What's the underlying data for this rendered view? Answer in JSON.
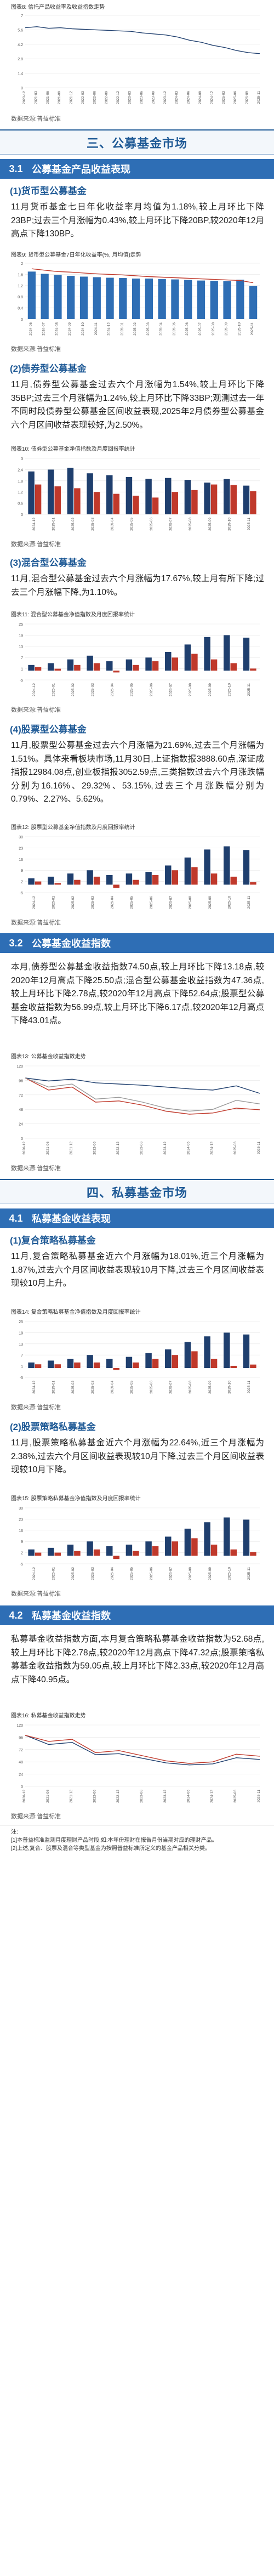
{
  "figures": {
    "f8": "图表8: 信托产品收益率及收益指数走势",
    "f9": "图表9: 货币型公募基金7日年化收益率(%, 月均值)走势",
    "f10": "图表10: 债券型公募基金净值指数及月度回报率统计",
    "f11": "图表11: 混合型公募基金净值指数及月度回报率统计",
    "f12": "图表12: 股票型公募基金净值指数及月度回报率统计",
    "f13": "图表13: 公募基金收益指数走势",
    "f14": "图表14: 复合策略私募基金净值指数及月度回报率统计",
    "f15": "图表15: 股票策略私募基金净值指数及月度回报率统计",
    "f16": "图表16: 私募基金收益指数走势"
  },
  "source_label": "数据来源:普益标准",
  "sections": {
    "s3": "三、公募基金市场",
    "s31_num": "3.1",
    "s31_title": "公募基金产品收益表现",
    "s311": "(1)货币型公募基金",
    "s312": "(2)债券型公募基金",
    "s313": "(3)混合型公募基金",
    "s314": "(4)股票型公募基金",
    "s32_num": "3.2",
    "s32_title": "公募基金收益指数",
    "s4": "四、私募基金市场",
    "s41_num": "4.1",
    "s41_title": "私募基金收益表现",
    "s411": "(1)复合策略私募基金",
    "s412": "(2)股票策略私募基金",
    "s42_num": "4.2",
    "s42_title": "私募基金收益指数"
  },
  "paragraphs": {
    "money": "11月货币基金七日年化收益率月均值为1.18%,较上月环比下降23BP;过去三个月涨幅为0.43%,较上月环比下降20BP,较2020年12月高点下降130BP。",
    "bond": "11月,债券型公募基金过去六个月涨幅为1.54%,较上月环比下降35BP;过去三个月涨幅为1.24%,较上月环比下降33BP;观测过去一年不同时段债券型公募基金区间收益表现,2025年2月债券型公募基金六个月区间收益表现较好,为2.50%。",
    "mixed": "11月,混合型公募基金过去六个月涨幅为17.67%,较上月有所下降;过去三个月涨幅下降,为1.10%。",
    "stock": "11月,股票型公募基金过去六个月涨幅为21.69%,过去三个月涨幅为1.51%。具体来看板块市场,11月30日,上证指数报3888.60点,深证成指报12984.08点,创业板指报3052.59点,三类指数过去六个月涨跌幅分别为16.16%、29.32%、53.15%,过去三个月涨跌幅分别为0.79%、2.27%、5.62%。",
    "index": "本月,债券型公募基金收益指数74.50点,较上月环比下降13.18点,较2020年12月高点下降25.50点;混合型公募基金收益指数为47.36点,较上月环比下降2.78点,较2020年12月高点下降52.64点;股票型公募基金收益指数为56.99点,较上月环比下降6.17点,较2020年12月高点下降43.01点。",
    "composite": "11月,复合策略私募基金近六个月涨幅为18.01%,近三个月涨幅为1.87%,过去六个月区间收益表现较10月下降,过去三个月区间收益表现较10月上升。",
    "privstock": "11月,股票策略私募基金近六个月涨幅为22.64%,近三个月涨幅为2.38%,过去六个月区间收益表现较10月下降,过去三个月区间收益表现较10月下降。",
    "privindex": "私募基金收益指数方面,本月复合策略私募基金收益指数为52.68点,较上月环比下降2.78点,较2020年12月高点下降47.32点;股票策略私募基金收益指数为59.05点,较上月环比下降2.33点,较2020年12月高点下降40.95点。"
  },
  "disclaimer": {
    "line1": "注:",
    "line2": "[1]本普益标准监测月度理财产品时段,如:本年份理财在报告月份当期对应的理财产品。",
    "line3": "[2]上述,复合、股票及混合等类型基金为按照普益标准所定义的基金产品相关分类。"
  },
  "colors": {
    "blue": "#2e6eb5",
    "red": "#c0392b",
    "orange": "#e68a2e",
    "navy": "#1f3f6e",
    "gray": "#9a9a9a"
  },
  "chart_data": [
    {
      "id": "f8",
      "type": "line",
      "categories": [
        "2020-12",
        "2021-03",
        "2021-06",
        "2021-09",
        "2021-12",
        "2022-03",
        "2022-06",
        "2022-09",
        "2022-12",
        "2023-03",
        "2023-06",
        "2023-09",
        "2023-12",
        "2024-03",
        "2024-06",
        "2024-09",
        "2024-12",
        "2025-03",
        "2025-06",
        "2025-09",
        "2025-11"
      ],
      "series": [
        {
          "name": "",
          "values": [
            5.8,
            5.9,
            5.75,
            5.8,
            5.7,
            5.65,
            5.6,
            5.55,
            5.5,
            5.45,
            5.3,
            5.2,
            5.1,
            4.9,
            4.6,
            4.4,
            4.1,
            3.9,
            3.6,
            3.4,
            3.3
          ],
          "color": "#1f3f6e"
        },
        {
          "name": "",
          "values": [
            100,
            101,
            101.5,
            101,
            101.5,
            102,
            101.5,
            101,
            100.5,
            101,
            100,
            99.5,
            99,
            98,
            96,
            95,
            94,
            92,
            90,
            88,
            87
          ],
          "color": "#8fb5dc"
        }
      ],
      "ylim": [
        0,
        7
      ]
    },
    {
      "id": "f9",
      "type": "bar_line",
      "categories": [
        "2024-06",
        "2024-07",
        "2024-08",
        "2024-09",
        "2024-10",
        "2024-11",
        "2024-12",
        "2025-01",
        "2025-02",
        "2025-03",
        "2025-04",
        "2025-05",
        "2025-06",
        "2025-07",
        "2025-08",
        "2025-09",
        "2025-10",
        "2025-11"
      ],
      "values": [
        1.7,
        1.62,
        1.58,
        1.55,
        1.52,
        1.5,
        1.48,
        1.47,
        1.45,
        1.45,
        1.43,
        1.42,
        1.4,
        1.38,
        1.37,
        1.36,
        1.41,
        1.18
      ],
      "line": [
        1.8,
        1.75,
        1.7,
        1.68,
        1.65,
        1.62,
        1.6,
        1.58,
        1.55,
        1.52,
        1.5,
        1.48,
        1.46,
        1.44,
        1.42,
        1.4,
        1.38,
        1.3
      ],
      "ylim": [
        0,
        2
      ]
    },
    {
      "id": "f10",
      "type": "bar",
      "categories": [
        "2024-12",
        "2025-01",
        "2025-02",
        "2025-03",
        "2025-04",
        "2025-05",
        "2025-06",
        "2025-07",
        "2025-08",
        "2025-09",
        "2025-10",
        "2025-11"
      ],
      "series": [
        {
          "name": "",
          "values": [
            2.3,
            2.4,
            2.5,
            2.2,
            2.1,
            2.0,
            1.9,
            1.95,
            1.85,
            1.7,
            1.89,
            1.54
          ],
          "color": "#1f3f6e"
        },
        {
          "name": "",
          "values": [
            1.6,
            1.5,
            1.4,
            1.2,
            1.1,
            1.0,
            0.9,
            1.2,
            1.3,
            1.6,
            1.57,
            1.24
          ],
          "color": "#c0392b"
        }
      ],
      "ylim": [
        0,
        3
      ]
    },
    {
      "id": "f11",
      "type": "bar",
      "categories": [
        "2024-12",
        "2025-01",
        "2025-02",
        "2025-03",
        "2025-04",
        "2025-05",
        "2025-06",
        "2025-07",
        "2025-08",
        "2025-09",
        "2025-10",
        "2025-11"
      ],
      "series": [
        {
          "name": "",
          "values": [
            3,
            4,
            6,
            8,
            5,
            6,
            7,
            10,
            14,
            18,
            19,
            17.67
          ],
          "color": "#1f3f6e"
        },
        {
          "name": "",
          "values": [
            2,
            1,
            3,
            4,
            -1,
            3,
            5,
            7,
            9,
            6,
            4,
            1.1
          ],
          "color": "#c0392b"
        }
      ],
      "ylim": [
        -5,
        25
      ]
    },
    {
      "id": "f12",
      "type": "bar",
      "categories": [
        "2024-12",
        "2025-01",
        "2025-02",
        "2025-03",
        "2025-04",
        "2025-05",
        "2025-06",
        "2025-07",
        "2025-08",
        "2025-09",
        "2025-10",
        "2025-11"
      ],
      "series": [
        {
          "name": "",
          "values": [
            4,
            5,
            7,
            9,
            6,
            7,
            8,
            12,
            17,
            22,
            24,
            21.69
          ],
          "color": "#1f3f6e"
        },
        {
          "name": "",
          "values": [
            2,
            1,
            3,
            5,
            -2,
            3,
            6,
            9,
            11,
            7,
            5,
            1.51
          ],
          "color": "#c0392b"
        }
      ],
      "ylim": [
        -5,
        30
      ]
    },
    {
      "id": "f13",
      "type": "line",
      "categories": [
        "2020-12",
        "2021-06",
        "2021-12",
        "2022-06",
        "2022-12",
        "2023-06",
        "2023-12",
        "2024-06",
        "2024-12",
        "2025-06",
        "2025-11"
      ],
      "series": [
        {
          "name": "",
          "values": [
            100,
            95,
            98,
            92,
            90,
            88,
            85,
            82,
            80,
            87,
            74.5
          ],
          "color": "#1f3f6e"
        },
        {
          "name": "",
          "values": [
            100,
            80,
            85,
            60,
            62,
            55,
            45,
            40,
            42,
            50,
            47.36
          ],
          "color": "#c0392b"
        },
        {
          "name": "",
          "values": [
            100,
            85,
            90,
            65,
            68,
            60,
            50,
            45,
            48,
            63,
            56.99
          ],
          "color": "#9a9a9a"
        }
      ],
      "ylim": [
        0,
        120
      ]
    },
    {
      "id": "f14",
      "type": "bar",
      "categories": [
        "2024-12",
        "2025-01",
        "2025-02",
        "2025-03",
        "2025-04",
        "2025-05",
        "2025-06",
        "2025-07",
        "2025-08",
        "2025-09",
        "2025-10",
        "2025-11"
      ],
      "series": [
        {
          "name": "",
          "values": [
            3,
            4,
            5,
            7,
            5,
            6,
            8,
            10,
            14,
            17,
            19,
            18.01
          ],
          "color": "#1f3f6e"
        },
        {
          "name": "",
          "values": [
            2,
            2,
            3,
            3,
            -1,
            3,
            5,
            7,
            9,
            5,
            1.2,
            1.87
          ],
          "color": "#c0392b"
        }
      ],
      "ylim": [
        -5,
        25
      ]
    },
    {
      "id": "f15",
      "type": "bar",
      "categories": [
        "2024-12",
        "2025-01",
        "2025-02",
        "2025-03",
        "2025-04",
        "2025-05",
        "2025-06",
        "2025-07",
        "2025-08",
        "2025-09",
        "2025-10",
        "2025-11"
      ],
      "series": [
        {
          "name": "",
          "values": [
            4,
            5,
            7,
            9,
            6,
            7,
            9,
            12,
            17,
            21,
            24,
            22.64
          ],
          "color": "#1f3f6e"
        },
        {
          "name": "",
          "values": [
            2,
            2,
            3,
            4,
            -2,
            3,
            6,
            9,
            11,
            7,
            4,
            2.38
          ],
          "color": "#c0392b"
        }
      ],
      "ylim": [
        -5,
        30
      ]
    },
    {
      "id": "f16",
      "type": "line",
      "categories": [
        "2020-12",
        "2021-06",
        "2021-12",
        "2022-06",
        "2022-12",
        "2023-06",
        "2023-12",
        "2024-06",
        "2024-12",
        "2025-06",
        "2025-11"
      ],
      "series": [
        {
          "name": "",
          "values": [
            100,
            82,
            86,
            62,
            64,
            55,
            46,
            42,
            44,
            56,
            52.68
          ],
          "color": "#1f3f6e"
        },
        {
          "name": "",
          "values": [
            100,
            88,
            92,
            66,
            70,
            60,
            50,
            45,
            48,
            63,
            59.05
          ],
          "color": "#c0392b"
        }
      ],
      "ylim": [
        0,
        120
      ]
    }
  ]
}
